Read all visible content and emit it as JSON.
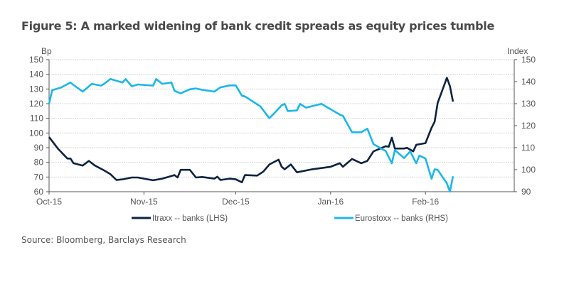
{
  "chart_data": {
    "type": "line",
    "title": "Figure 5: A marked widening of bank credit spreads as equity prices tumble",
    "source": "Source: Bloomberg, Barclays Research",
    "x_range": [
      "2015-10-01",
      "2016-03-01"
    ],
    "x_ticks": [
      {
        "date": "2015-10-01",
        "label": "Oct-15"
      },
      {
        "date": "2015-11-01",
        "label": "Nov-15"
      },
      {
        "date": "2015-12-01",
        "label": "Dec-15"
      },
      {
        "date": "2016-01-01",
        "label": "Jan-16"
      },
      {
        "date": "2016-02-01",
        "label": "Feb-16"
      }
    ],
    "y_left": {
      "label": "Bp",
      "range": [
        60,
        150
      ],
      "ticks": [
        60,
        70,
        80,
        90,
        100,
        110,
        120,
        130,
        140,
        150
      ]
    },
    "y_right": {
      "label": "Index",
      "range": [
        90,
        150
      ],
      "ticks": [
        90,
        100,
        110,
        120,
        130,
        140,
        150
      ]
    },
    "grid": true,
    "legend_position": "bottom",
    "series": [
      {
        "name": "Itraxx -- banks (LHS)",
        "axis": "left",
        "color": "#0c2340",
        "points": [
          [
            "2015-10-01",
            97.2
          ],
          [
            "2015-10-04",
            89.1
          ],
          [
            "2015-10-07",
            82.6
          ],
          [
            "2015-10-08",
            82.6
          ],
          [
            "2015-10-09",
            79.4
          ],
          [
            "2015-10-12",
            77.8
          ],
          [
            "2015-10-14",
            81
          ],
          [
            "2015-10-16",
            77.8
          ],
          [
            "2015-10-19",
            74.5
          ],
          [
            "2015-10-21",
            72
          ],
          [
            "2015-10-23",
            68
          ],
          [
            "2015-10-25",
            68.4
          ],
          [
            "2015-10-28",
            69.7
          ],
          [
            "2015-10-30",
            69.7
          ],
          [
            "2015-11-01",
            68.9
          ],
          [
            "2015-11-04",
            67.8
          ],
          [
            "2015-11-07",
            68.9
          ],
          [
            "2015-11-11",
            71.3
          ],
          [
            "2015-11-12",
            69.7
          ],
          [
            "2015-11-13",
            74.9
          ],
          [
            "2015-11-16",
            74.9
          ],
          [
            "2015-11-18",
            69.7
          ],
          [
            "2015-11-20",
            70
          ],
          [
            "2015-11-24",
            68.9
          ],
          [
            "2015-11-25",
            70.2
          ],
          [
            "2015-11-26",
            68
          ],
          [
            "2015-11-29",
            68.9
          ],
          [
            "2015-12-01",
            68.4
          ],
          [
            "2015-12-03",
            66.4
          ],
          [
            "2015-12-04",
            71.3
          ],
          [
            "2015-12-08",
            71
          ],
          [
            "2015-12-10",
            73.7
          ],
          [
            "2015-12-12",
            78.6
          ],
          [
            "2015-12-15",
            81.8
          ],
          [
            "2015-12-16",
            77
          ],
          [
            "2015-12-17",
            75.3
          ],
          [
            "2015-12-19",
            78.6
          ],
          [
            "2015-12-21",
            73.2
          ],
          [
            "2015-12-26",
            75.3
          ],
          [
            "2016-01-01",
            77
          ],
          [
            "2016-01-04",
            79.4
          ],
          [
            "2016-01-05",
            77
          ],
          [
            "2016-01-08",
            82.3
          ],
          [
            "2016-01-11",
            79.4
          ],
          [
            "2016-01-13",
            81
          ],
          [
            "2016-01-15",
            87.5
          ],
          [
            "2016-01-19",
            91
          ],
          [
            "2016-01-20",
            90.7
          ],
          [
            "2016-01-21",
            96.8
          ],
          [
            "2016-01-22",
            89.4
          ],
          [
            "2016-01-25",
            89.4
          ],
          [
            "2016-01-26",
            89.9
          ],
          [
            "2016-01-28",
            87.5
          ],
          [
            "2016-01-29",
            92
          ],
          [
            "2016-02-01",
            93.1
          ],
          [
            "2016-02-03",
            103.6
          ],
          [
            "2016-02-04",
            107.7
          ],
          [
            "2016-02-05",
            120.6
          ],
          [
            "2016-02-08",
            137.6
          ],
          [
            "2016-02-09",
            131.9
          ],
          [
            "2016-02-10",
            121.4
          ]
        ]
      },
      {
        "name": "Eurostoxx -- banks (RHS)",
        "axis": "right",
        "color": "#1ab7ea",
        "points": [
          [
            "2015-10-01",
            129.9
          ],
          [
            "2015-10-02",
            136.1
          ],
          [
            "2015-10-05",
            137.4
          ],
          [
            "2015-10-08",
            139.6
          ],
          [
            "2015-10-09",
            138.5
          ],
          [
            "2015-10-12",
            135.5
          ],
          [
            "2015-10-15",
            139
          ],
          [
            "2015-10-18",
            138.2
          ],
          [
            "2015-10-19",
            139
          ],
          [
            "2015-10-21",
            141.2
          ],
          [
            "2015-10-25",
            139.6
          ],
          [
            "2015-10-26",
            141.2
          ],
          [
            "2015-10-28",
            137.9
          ],
          [
            "2015-10-30",
            138.7
          ],
          [
            "2015-11-04",
            138.2
          ],
          [
            "2015-11-05",
            141.2
          ],
          [
            "2015-11-07",
            139
          ],
          [
            "2015-11-10",
            139.6
          ],
          [
            "2015-11-11",
            135.8
          ],
          [
            "2015-11-13",
            134.7
          ],
          [
            "2015-11-16",
            136.5
          ],
          [
            "2015-11-18",
            136.9
          ],
          [
            "2015-11-20",
            136.3
          ],
          [
            "2015-11-24",
            135.5
          ],
          [
            "2015-11-26",
            137.4
          ],
          [
            "2015-11-29",
            138.3
          ],
          [
            "2015-12-01",
            138.3
          ],
          [
            "2015-12-03",
            133.6
          ],
          [
            "2015-12-04",
            133.3
          ],
          [
            "2015-12-09",
            128.8
          ],
          [
            "2015-12-12",
            123.4
          ],
          [
            "2015-12-15",
            127.7
          ],
          [
            "2015-12-16",
            129.3
          ],
          [
            "2015-12-17",
            129.9
          ],
          [
            "2015-12-18",
            126.6
          ],
          [
            "2015-12-21",
            126.9
          ],
          [
            "2015-12-22",
            129.9
          ],
          [
            "2015-12-24",
            128.2
          ],
          [
            "2015-12-29",
            129.9
          ],
          [
            "2016-01-04",
            125
          ],
          [
            "2016-01-05",
            124.5
          ],
          [
            "2016-01-08",
            117
          ],
          [
            "2016-01-11",
            117
          ],
          [
            "2016-01-13",
            118.6
          ],
          [
            "2016-01-15",
            111.6
          ],
          [
            "2016-01-19",
            108.5
          ],
          [
            "2016-01-21",
            102.9
          ],
          [
            "2016-01-22",
            108.9
          ],
          [
            "2016-01-25",
            105.3
          ],
          [
            "2016-01-27",
            108.3
          ],
          [
            "2016-01-29",
            102.9
          ],
          [
            "2016-01-30",
            106.4
          ],
          [
            "2016-02-01",
            105.1
          ],
          [
            "2016-02-03",
            95.9
          ],
          [
            "2016-02-04",
            100.2
          ],
          [
            "2016-02-05",
            99.9
          ],
          [
            "2016-02-08",
            93.8
          ],
          [
            "2016-02-09",
            90
          ],
          [
            "2016-02-10",
            97
          ]
        ]
      }
    ]
  }
}
